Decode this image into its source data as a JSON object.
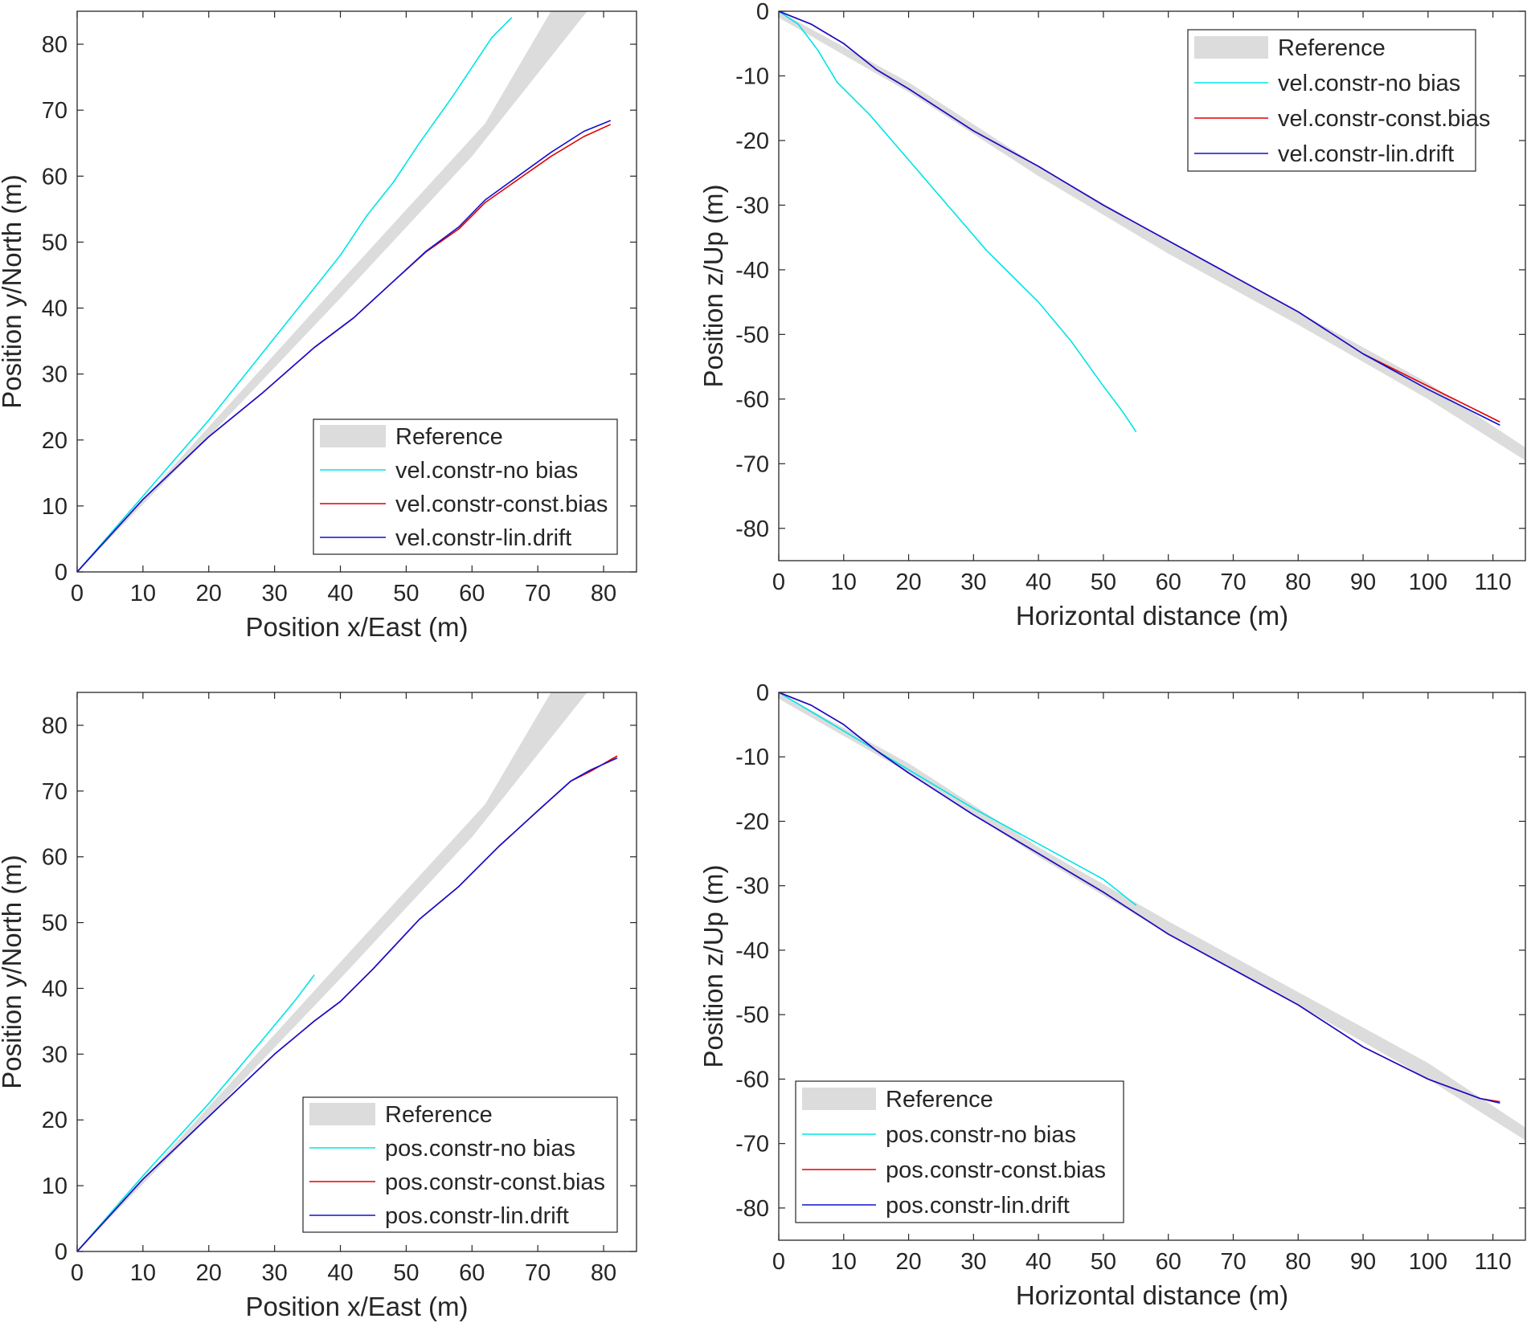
{
  "colors": {
    "reference": "#dcdcdc",
    "no_bias": "#00e5e5",
    "const_bias": "#e00000",
    "lin_drift": "#1010d0",
    "axis": "#262626"
  },
  "chart_data": [
    {
      "id": "top-left",
      "type": "line",
      "xlabel": "Position x/East (m)",
      "ylabel": "Position y/North (m)",
      "xlim": [
        0,
        85
      ],
      "ylim": [
        0,
        85
      ],
      "xticks": [
        0,
        10,
        20,
        30,
        40,
        50,
        60,
        70,
        80
      ],
      "yticks": [
        0,
        10,
        20,
        30,
        40,
        50,
        60,
        70,
        80
      ],
      "legend_position": "bottom-right",
      "reference_band": {
        "name": "Reference",
        "upper": [
          [
            0,
            0
          ],
          [
            20,
            22
          ],
          [
            40,
            44
          ],
          [
            62,
            68
          ],
          [
            72,
            85
          ]
        ],
        "lower": [
          [
            0,
            0
          ],
          [
            20,
            20.5
          ],
          [
            40,
            41.5
          ],
          [
            60,
            63
          ],
          [
            77.5,
            85
          ]
        ]
      },
      "series": [
        {
          "name": "vel.constr-no bias",
          "color_key": "no_bias",
          "points": [
            [
              0,
              0
            ],
            [
              10,
              11.5
            ],
            [
              20,
              23
            ],
            [
              30,
              35.5
            ],
            [
              36,
              43
            ],
            [
              40,
              48
            ],
            [
              44,
              54
            ],
            [
              48,
              59
            ],
            [
              52,
              65
            ],
            [
              57,
              72
            ],
            [
              60,
              76.5
            ],
            [
              63,
              81
            ],
            [
              66,
              84
            ]
          ]
        },
        {
          "name": "vel.constr-const.bias",
          "color_key": "const_bias",
          "points": [
            [
              0,
              0
            ],
            [
              10,
              11
            ],
            [
              20,
              20.5
            ],
            [
              28,
              27
            ],
            [
              36,
              34
            ],
            [
              42,
              38.5
            ],
            [
              48,
              44
            ],
            [
              53,
              48.5
            ],
            [
              58,
              52
            ],
            [
              62,
              56
            ],
            [
              67,
              59.5
            ],
            [
              72,
              63
            ],
            [
              77,
              66
            ],
            [
              81,
              67.8
            ]
          ]
        },
        {
          "name": "vel.constr-lin.drift",
          "color_key": "lin_drift",
          "points": [
            [
              0,
              0
            ],
            [
              10,
              11
            ],
            [
              20,
              20.5
            ],
            [
              28,
              27
            ],
            [
              36,
              34
            ],
            [
              42,
              38.5
            ],
            [
              48,
              44
            ],
            [
              53,
              48.6
            ],
            [
              58,
              52.3
            ],
            [
              62,
              56.4
            ],
            [
              67,
              60
            ],
            [
              72,
              63.6
            ],
            [
              77,
              66.8
            ],
            [
              81,
              68.4
            ]
          ]
        }
      ]
    },
    {
      "id": "top-right",
      "type": "line",
      "xlabel": "Horizontal distance (m)",
      "ylabel": "Position z/Up (m)",
      "xlim": [
        0,
        115
      ],
      "ylim": [
        -85,
        0
      ],
      "xticks": [
        0,
        10,
        20,
        30,
        40,
        50,
        60,
        70,
        80,
        90,
        100,
        110
      ],
      "yticks": [
        0,
        -10,
        -20,
        -30,
        -40,
        -50,
        -60,
        -70,
        -80
      ],
      "legend_position": "top-right",
      "reference_band": {
        "name": "Reference",
        "upper": [
          [
            0,
            0
          ],
          [
            20,
            -11
          ],
          [
            40,
            -24
          ],
          [
            60,
            -35.5
          ],
          [
            80,
            -46.5
          ],
          [
            100,
            -57.5
          ],
          [
            115,
            -67.5
          ]
        ],
        "lower": [
          [
            0,
            -1
          ],
          [
            20,
            -12.5
          ],
          [
            40,
            -25.5
          ],
          [
            60,
            -37.5
          ],
          [
            80,
            -48.5
          ],
          [
            100,
            -60
          ],
          [
            115,
            -69.5
          ]
        ]
      },
      "series": [
        {
          "name": "vel.constr-no bias",
          "color_key": "no_bias",
          "points": [
            [
              0,
              0
            ],
            [
              3,
              -2
            ],
            [
              6,
              -6
            ],
            [
              9,
              -11
            ],
            [
              14,
              -16
            ],
            [
              20,
              -23
            ],
            [
              26,
              -30
            ],
            [
              32,
              -37
            ],
            [
              40,
              -45
            ],
            [
              45,
              -51
            ],
            [
              50,
              -58
            ],
            [
              53,
              -62
            ],
            [
              55,
              -65
            ]
          ]
        },
        {
          "name": "vel.constr-const.bias",
          "color_key": "const_bias",
          "points": [
            [
              0,
              0
            ],
            [
              5,
              -2
            ],
            [
              10,
              -5
            ],
            [
              15,
              -9
            ],
            [
              20,
              -12
            ],
            [
              30,
              -18.5
            ],
            [
              40,
              -24
            ],
            [
              50,
              -30
            ],
            [
              60,
              -35.5
            ],
            [
              70,
              -41
            ],
            [
              80,
              -46.5
            ],
            [
              90,
              -53
            ],
            [
              100,
              -58
            ],
            [
              108,
              -62
            ],
            [
              111,
              -63.5
            ]
          ]
        },
        {
          "name": "vel.constr-lin.drift",
          "color_key": "lin_drift",
          "points": [
            [
              0,
              0
            ],
            [
              5,
              -2
            ],
            [
              10,
              -5
            ],
            [
              15,
              -9
            ],
            [
              20,
              -12
            ],
            [
              30,
              -18.5
            ],
            [
              40,
              -24
            ],
            [
              50,
              -30
            ],
            [
              60,
              -35.5
            ],
            [
              70,
              -41
            ],
            [
              80,
              -46.5
            ],
            [
              90,
              -53
            ],
            [
              100,
              -58.5
            ],
            [
              108,
              -62.5
            ],
            [
              111,
              -64
            ]
          ]
        }
      ]
    },
    {
      "id": "bottom-left",
      "type": "line",
      "xlabel": "Position x/East (m)",
      "ylabel": "Position y/North (m)",
      "xlim": [
        0,
        85
      ],
      "ylim": [
        0,
        85
      ],
      "xticks": [
        0,
        10,
        20,
        30,
        40,
        50,
        60,
        70,
        80
      ],
      "yticks": [
        0,
        10,
        20,
        30,
        40,
        50,
        60,
        70,
        80
      ],
      "legend_position": "bottom-right",
      "reference_band": {
        "name": "Reference",
        "upper": [
          [
            0,
            0
          ],
          [
            20,
            22
          ],
          [
            40,
            44
          ],
          [
            62,
            68
          ],
          [
            72,
            85
          ]
        ],
        "lower": [
          [
            0,
            0
          ],
          [
            20,
            20.5
          ],
          [
            40,
            41.5
          ],
          [
            60,
            63
          ],
          [
            77.5,
            85
          ]
        ]
      },
      "series": [
        {
          "name": "pos.constr-no bias",
          "color_key": "no_bias",
          "points": [
            [
              0,
              0
            ],
            [
              10,
              11.5
            ],
            [
              20,
              22.5
            ],
            [
              28,
              32
            ],
            [
              33,
              38
            ],
            [
              36,
              42
            ]
          ]
        },
        {
          "name": "pos.constr-const.bias",
          "color_key": "const_bias",
          "points": [
            [
              0,
              0
            ],
            [
              10,
              11
            ],
            [
              20,
              20.5
            ],
            [
              30,
              30
            ],
            [
              36,
              35
            ],
            [
              40,
              38
            ],
            [
              45,
              43
            ],
            [
              52,
              50.5
            ],
            [
              58,
              55.5
            ],
            [
              64,
              61.5
            ],
            [
              70,
              67
            ],
            [
              75,
              71.5
            ],
            [
              78,
              73
            ],
            [
              82,
              75.3
            ]
          ]
        },
        {
          "name": "pos.constr-lin.drift",
          "color_key": "lin_drift",
          "points": [
            [
              0,
              0
            ],
            [
              10,
              11
            ],
            [
              20,
              20.5
            ],
            [
              30,
              30
            ],
            [
              36,
              35
            ],
            [
              40,
              38
            ],
            [
              45,
              43
            ],
            [
              52,
              50.5
            ],
            [
              58,
              55.5
            ],
            [
              64,
              61.5
            ],
            [
              70,
              67
            ],
            [
              75,
              71.5
            ],
            [
              78,
              73.2
            ],
            [
              82,
              75
            ]
          ]
        }
      ]
    },
    {
      "id": "bottom-right",
      "type": "line",
      "xlabel": "Horizontal distance (m)",
      "ylabel": "Position z/Up (m)",
      "xlim": [
        0,
        115
      ],
      "ylim": [
        -85,
        0
      ],
      "xticks": [
        0,
        10,
        20,
        30,
        40,
        50,
        60,
        70,
        80,
        90,
        100,
        110
      ],
      "yticks": [
        0,
        -10,
        -20,
        -30,
        -40,
        -50,
        -60,
        -70,
        -80
      ],
      "legend_position": "bottom-left",
      "reference_band": {
        "name": "Reference",
        "upper": [
          [
            0,
            0
          ],
          [
            20,
            -11
          ],
          [
            40,
            -24
          ],
          [
            60,
            -35.5
          ],
          [
            80,
            -46.5
          ],
          [
            100,
            -57.5
          ],
          [
            115,
            -67.5
          ]
        ],
        "lower": [
          [
            0,
            -1
          ],
          [
            20,
            -12.5
          ],
          [
            40,
            -25.5
          ],
          [
            60,
            -37.5
          ],
          [
            80,
            -48.5
          ],
          [
            100,
            -60
          ],
          [
            115,
            -69.5
          ]
        ]
      },
      "series": [
        {
          "name": "pos.constr-no bias",
          "color_key": "no_bias",
          "points": [
            [
              0,
              0
            ],
            [
              10,
              -6
            ],
            [
              20,
              -12
            ],
            [
              30,
              -18
            ],
            [
              40,
              -23.5
            ],
            [
              50,
              -29
            ],
            [
              55,
              -33
            ]
          ]
        },
        {
          "name": "pos.constr-const.bias",
          "color_key": "const_bias",
          "points": [
            [
              0,
              0
            ],
            [
              5,
              -2
            ],
            [
              10,
              -5
            ],
            [
              15,
              -9
            ],
            [
              20,
              -12.5
            ],
            [
              30,
              -19
            ],
            [
              40,
              -25
            ],
            [
              50,
              -31
            ],
            [
              60,
              -37.5
            ],
            [
              70,
              -43
            ],
            [
              80,
              -48.5
            ],
            [
              90,
              -55
            ],
            [
              100,
              -60
            ],
            [
              108,
              -63
            ],
            [
              111,
              -63.5
            ]
          ]
        },
        {
          "name": "pos.constr-lin.drift",
          "color_key": "lin_drift",
          "points": [
            [
              0,
              0
            ],
            [
              5,
              -2
            ],
            [
              10,
              -5
            ],
            [
              15,
              -9
            ],
            [
              20,
              -12.5
            ],
            [
              30,
              -19
            ],
            [
              40,
              -25
            ],
            [
              50,
              -31
            ],
            [
              60,
              -37.5
            ],
            [
              70,
              -43
            ],
            [
              80,
              -48.5
            ],
            [
              90,
              -55
            ],
            [
              100,
              -60
            ],
            [
              108,
              -63
            ],
            [
              111,
              -63.7
            ]
          ]
        }
      ]
    }
  ]
}
